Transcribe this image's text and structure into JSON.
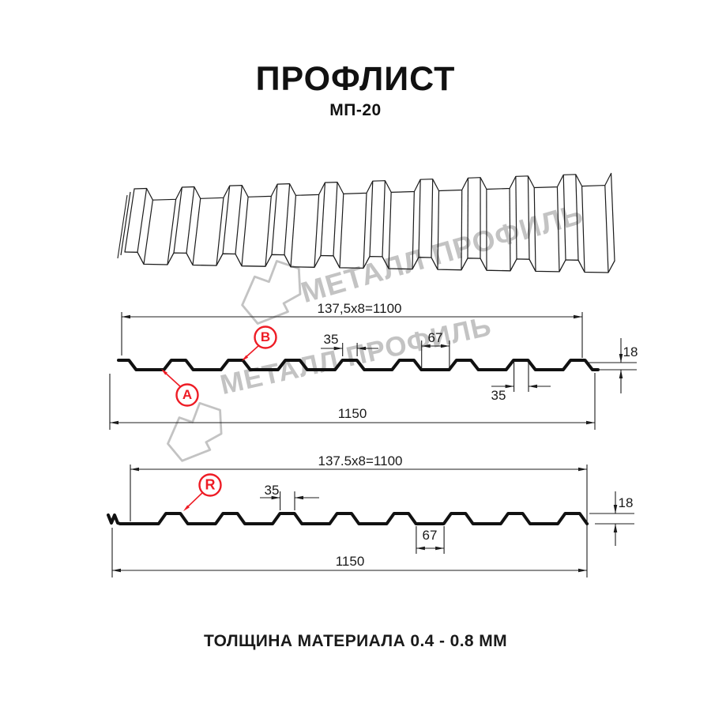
{
  "header": {
    "title": "ПРОФЛИСТ",
    "subtitle": "МП-20"
  },
  "watermark": {
    "text": "МЕТАЛЛ ПРОФИЛЬ"
  },
  "section1": {
    "top_width": "137,5x8=1100",
    "rib_top_width": "35",
    "valley_width": "67",
    "profile_height": "18",
    "rib_bottom_width": "35",
    "total_width": "1150",
    "label_a": "A",
    "label_b": "B"
  },
  "section2": {
    "top_width": "137.5x8=1100",
    "rib_top_width": "35",
    "valley_width": "67",
    "profile_height": "18",
    "total_width": "1150",
    "label_r": "R"
  },
  "footer": {
    "thickness_note": "ТОЛЩИНА МАТЕРИАЛА 0.4 - 0.8 ММ"
  },
  "colors": {
    "accent_red": "#ee1c25",
    "line": "#1c1c1c",
    "watermark_gray": "#9e9e9e"
  }
}
